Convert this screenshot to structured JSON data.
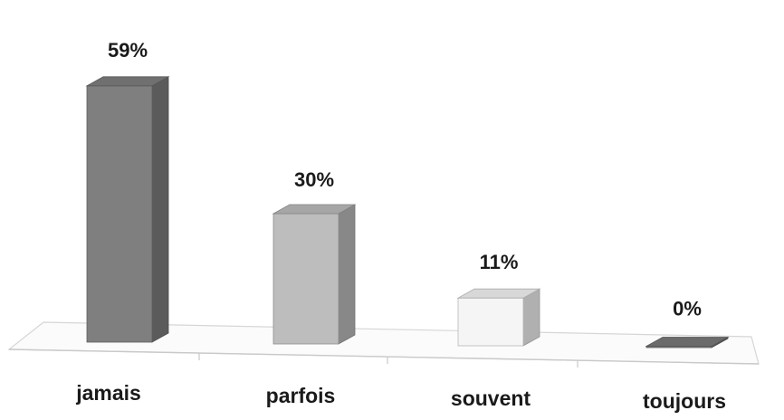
{
  "chart_data": {
    "type": "bar",
    "style": "3d-column",
    "categories": [
      "jamais",
      "parfois",
      "souvent",
      "toujours"
    ],
    "values": [
      59,
      30,
      11,
      0
    ],
    "data_labels": [
      "59%",
      "30%",
      "11%",
      "0%"
    ],
    "title": "",
    "xlabel": "",
    "ylabel": "",
    "ylim": [
      0,
      60
    ],
    "grid": false,
    "legend": "none",
    "bar_colors": [
      "#7f7f7f",
      "#bdbdbd",
      "#f5f5f5",
      "#7a7a7a"
    ]
  }
}
